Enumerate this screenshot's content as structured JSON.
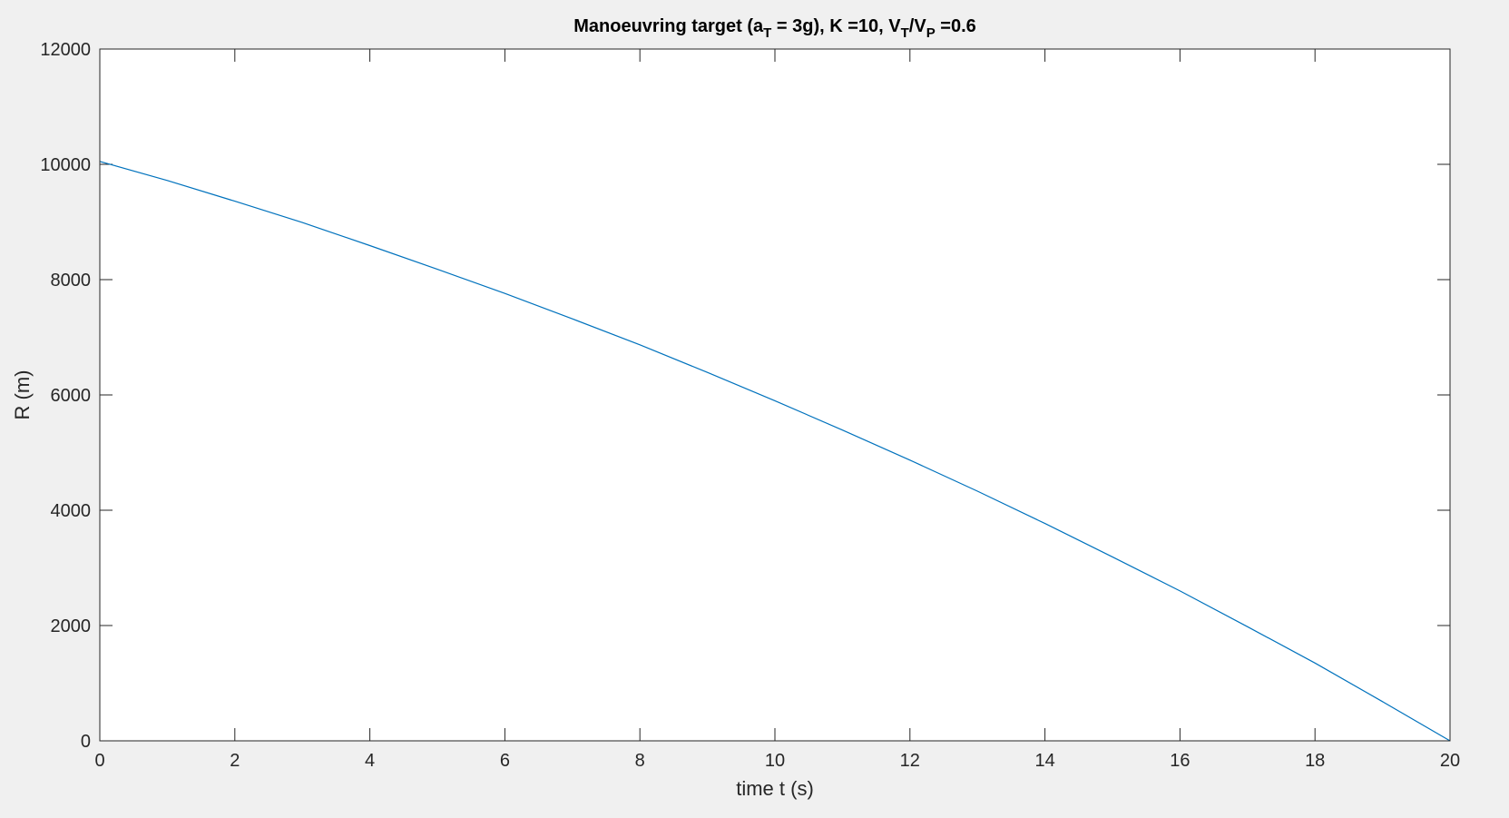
{
  "chart_data": {
    "type": "line",
    "title": {
      "prefix": "Manoeuvring target (a",
      "sub1": "T",
      "mid": " = 3g),   K =10,   V",
      "sub2": "T",
      "mid2": "/V",
      "sub3": "P",
      "suffix": " =0.6"
    },
    "xlabel": "time t (s)",
    "ylabel": "R (m)",
    "xlim": [
      0,
      20
    ],
    "ylim": [
      0,
      12000
    ],
    "xticks": [
      0,
      2,
      4,
      6,
      8,
      10,
      12,
      14,
      16,
      18,
      20
    ],
    "yticks": [
      0,
      2000,
      4000,
      6000,
      8000,
      10000,
      12000
    ],
    "grid": false,
    "series": [
      {
        "color": "#0072BD",
        "x": [
          0,
          1,
          2,
          3,
          4,
          5,
          6,
          7,
          8,
          9,
          10,
          11,
          12,
          13,
          14,
          15,
          16,
          17,
          18,
          19,
          20
        ],
        "y": [
          10050,
          9720,
          9360,
          8990,
          8590,
          8180,
          7760,
          7320,
          6870,
          6390,
          5900,
          5390,
          4870,
          4330,
          3770,
          3190,
          2600,
          1980,
          1350,
          680,
          0
        ]
      }
    ]
  }
}
